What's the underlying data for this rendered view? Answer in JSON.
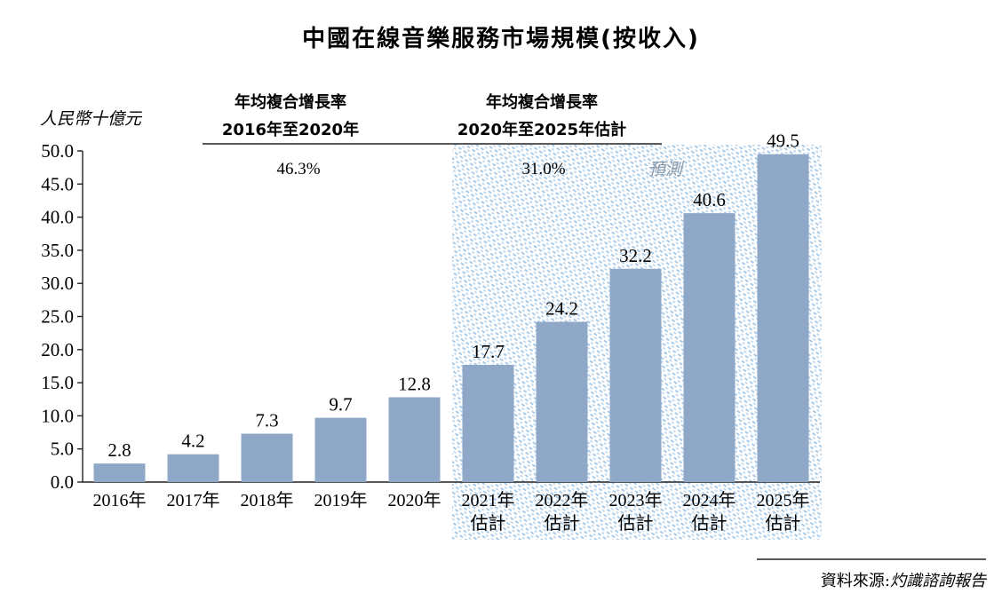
{
  "chart_data": {
    "type": "bar",
    "title": "中國在線音樂服務市場規模(按收入)",
    "ylabel": "人民幣十億元",
    "xlabel": "",
    "ylim": [
      0,
      50
    ],
    "y_ticks": [
      "0.0",
      "5.0",
      "10.0",
      "15.0",
      "20.0",
      "25.0",
      "30.0",
      "35.0",
      "40.0",
      "45.0",
      "50.0"
    ],
    "categories": [
      {
        "line1": "2016年",
        "line2": ""
      },
      {
        "line1": "2017年",
        "line2": ""
      },
      {
        "line1": "2018年",
        "line2": ""
      },
      {
        "line1": "2019年",
        "line2": ""
      },
      {
        "line1": "2020年",
        "line2": ""
      },
      {
        "line1": "2021年",
        "line2": "估計"
      },
      {
        "line1": "2022年",
        "line2": "估計"
      },
      {
        "line1": "2023年",
        "line2": "估計"
      },
      {
        "line1": "2024年",
        "line2": "估計"
      },
      {
        "line1": "2025年",
        "line2": "估計"
      }
    ],
    "values": [
      2.8,
      4.2,
      7.3,
      9.7,
      12.8,
      17.7,
      24.2,
      32.2,
      40.6,
      49.5
    ],
    "value_labels": [
      "2.8",
      "4.2",
      "7.3",
      "9.7",
      "12.8",
      "17.7",
      "24.2",
      "32.2",
      "40.6",
      "49.5"
    ],
    "forecast_start_index": 5,
    "forecast_label": "預測",
    "cagr": [
      {
        "heading_line1": "年均複合增長率",
        "heading_line2": "2016年至2020年",
        "value": "46.3%"
      },
      {
        "heading_line1": "年均複合增長率",
        "heading_line2": "2020年至2025年估計",
        "value": "31.0%"
      }
    ],
    "colors": {
      "bar": "#8fa8c8",
      "forecast_pattern": "#a6c8e6",
      "axis": "#222222"
    }
  },
  "source": {
    "prefix": "資料來源:",
    "name": "灼識諮詢報告"
  }
}
